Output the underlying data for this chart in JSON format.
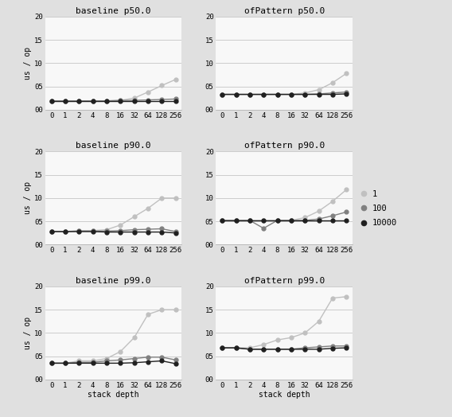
{
  "x_values": [
    0,
    1,
    2,
    4,
    8,
    16,
    32,
    64,
    128,
    256
  ],
  "x_labels": [
    "0",
    "1",
    "2",
    "4",
    "8",
    "16",
    "32",
    "64",
    "128",
    "256"
  ],
  "colors": {
    "1": "#c0c0c0",
    "100": "#808080",
    "10000": "#202020"
  },
  "series_labels": [
    "1",
    "100",
    "10000"
  ],
  "subplots": [
    {
      "title": "baseline p50.0",
      "row": 0,
      "col": 0,
      "ylim": [
        0.0,
        2.0
      ],
      "yticks": [
        0.0,
        0.5,
        1.0,
        1.5,
        2.0
      ],
      "data": {
        "1": [
          0.18,
          0.18,
          0.18,
          0.18,
          0.19,
          0.2,
          0.25,
          0.38,
          0.52,
          0.65
        ],
        "100": [
          0.19,
          0.19,
          0.19,
          0.19,
          0.19,
          0.2,
          0.2,
          0.21,
          0.22,
          0.23
        ],
        "10000": [
          0.19,
          0.19,
          0.19,
          0.19,
          0.19,
          0.19,
          0.19,
          0.19,
          0.19,
          0.19
        ]
      }
    },
    {
      "title": "ofPattern p50.0",
      "row": 0,
      "col": 1,
      "ylim": [
        0.0,
        2.0
      ],
      "yticks": [
        0.0,
        0.5,
        1.0,
        1.5,
        2.0
      ],
      "data": {
        "1": [
          0.33,
          0.33,
          0.33,
          0.33,
          0.33,
          0.33,
          0.36,
          0.43,
          0.58,
          0.78
        ],
        "100": [
          0.33,
          0.33,
          0.33,
          0.33,
          0.33,
          0.33,
          0.33,
          0.34,
          0.36,
          0.38
        ],
        "10000": [
          0.33,
          0.33,
          0.33,
          0.33,
          0.33,
          0.33,
          0.33,
          0.33,
          0.33,
          0.34
        ]
      }
    },
    {
      "title": "baseline p90.0",
      "row": 1,
      "col": 0,
      "ylim": [
        0.0,
        2.0
      ],
      "yticks": [
        0.0,
        0.5,
        1.0,
        1.5,
        2.0
      ],
      "data": {
        "1": [
          0.28,
          0.28,
          0.3,
          0.3,
          0.32,
          0.42,
          0.6,
          0.78,
          1.0,
          1.0
        ],
        "100": [
          0.28,
          0.28,
          0.29,
          0.29,
          0.29,
          0.3,
          0.32,
          0.33,
          0.34,
          0.28
        ],
        "10000": [
          0.28,
          0.28,
          0.28,
          0.28,
          0.27,
          0.27,
          0.27,
          0.27,
          0.27,
          0.25
        ]
      }
    },
    {
      "title": "ofPattern p90.0",
      "row": 1,
      "col": 1,
      "ylim": [
        0.0,
        2.0
      ],
      "yticks": [
        0.0,
        0.5,
        1.0,
        1.5,
        2.0
      ],
      "data": {
        "1": [
          0.52,
          0.52,
          0.52,
          0.52,
          0.52,
          0.52,
          0.58,
          0.72,
          0.93,
          1.18
        ],
        "100": [
          0.52,
          0.52,
          0.52,
          0.35,
          0.52,
          0.52,
          0.52,
          0.55,
          0.62,
          0.7
        ],
        "10000": [
          0.52,
          0.52,
          0.52,
          0.52,
          0.52,
          0.52,
          0.52,
          0.52,
          0.52,
          0.52
        ]
      }
    },
    {
      "title": "baseline p99.0",
      "row": 2,
      "col": 0,
      "ylim": [
        0.0,
        2.0
      ],
      "yticks": [
        0.0,
        0.5,
        1.0,
        1.5,
        2.0
      ],
      "data": {
        "1": [
          0.35,
          0.35,
          0.4,
          0.4,
          0.45,
          0.6,
          0.9,
          1.4,
          1.5,
          1.5
        ],
        "100": [
          0.35,
          0.35,
          0.37,
          0.37,
          0.4,
          0.42,
          0.45,
          0.48,
          0.48,
          0.42
        ],
        "10000": [
          0.35,
          0.35,
          0.35,
          0.35,
          0.35,
          0.35,
          0.36,
          0.38,
          0.4,
          0.34
        ]
      }
    },
    {
      "title": "ofPattern p99.0",
      "row": 2,
      "col": 1,
      "ylim": [
        0.0,
        2.0
      ],
      "yticks": [
        0.0,
        0.5,
        1.0,
        1.5,
        2.0
      ],
      "data": {
        "1": [
          0.68,
          0.68,
          0.68,
          0.75,
          0.85,
          0.9,
          1.0,
          1.25,
          1.75,
          1.78
        ],
        "100": [
          0.68,
          0.68,
          0.65,
          0.65,
          0.65,
          0.65,
          0.68,
          0.7,
          0.72,
          0.72
        ],
        "10000": [
          0.68,
          0.68,
          0.65,
          0.65,
          0.65,
          0.65,
          0.65,
          0.65,
          0.67,
          0.68
        ]
      }
    }
  ],
  "ylabel": "us / op",
  "xlabel": "stack depth",
  "background_color": "#e0e0e0",
  "plot_background": "#f8f8f8",
  "title_fontsize": 8,
  "label_fontsize": 7,
  "tick_fontsize": 6.5,
  "legend_fontsize": 7.5,
  "marker": "o",
  "markersize": 3.5,
  "linewidth": 1.0
}
